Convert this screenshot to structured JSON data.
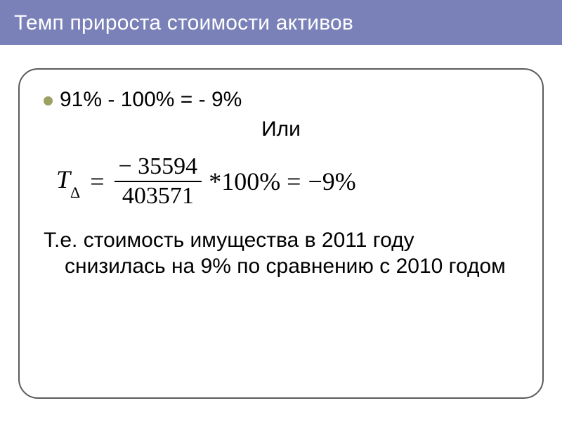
{
  "slide": {
    "title": "Темп прироста стоимости активов",
    "title_bg": "#7a80b8",
    "title_color": "#ffffff",
    "title_fontsize": 30,
    "bullet_color": "#9ba063",
    "box_border_color": "#5b5b5b",
    "box_border_radius": 28,
    "body_fontsize": 30
  },
  "content": {
    "line1": "91% - 100% = - 9%",
    "or_word": "Или",
    "formula": {
      "symbol": "T",
      "subscript": "Δ",
      "numerator": "− 35594",
      "denominator": "403571",
      "suffix": "*100% =",
      "result": "−9%"
    },
    "conclusion_full": "Т.е. стоимость имущества в 2011 году снизилась на 9% по сравнению с 2010 годом"
  }
}
